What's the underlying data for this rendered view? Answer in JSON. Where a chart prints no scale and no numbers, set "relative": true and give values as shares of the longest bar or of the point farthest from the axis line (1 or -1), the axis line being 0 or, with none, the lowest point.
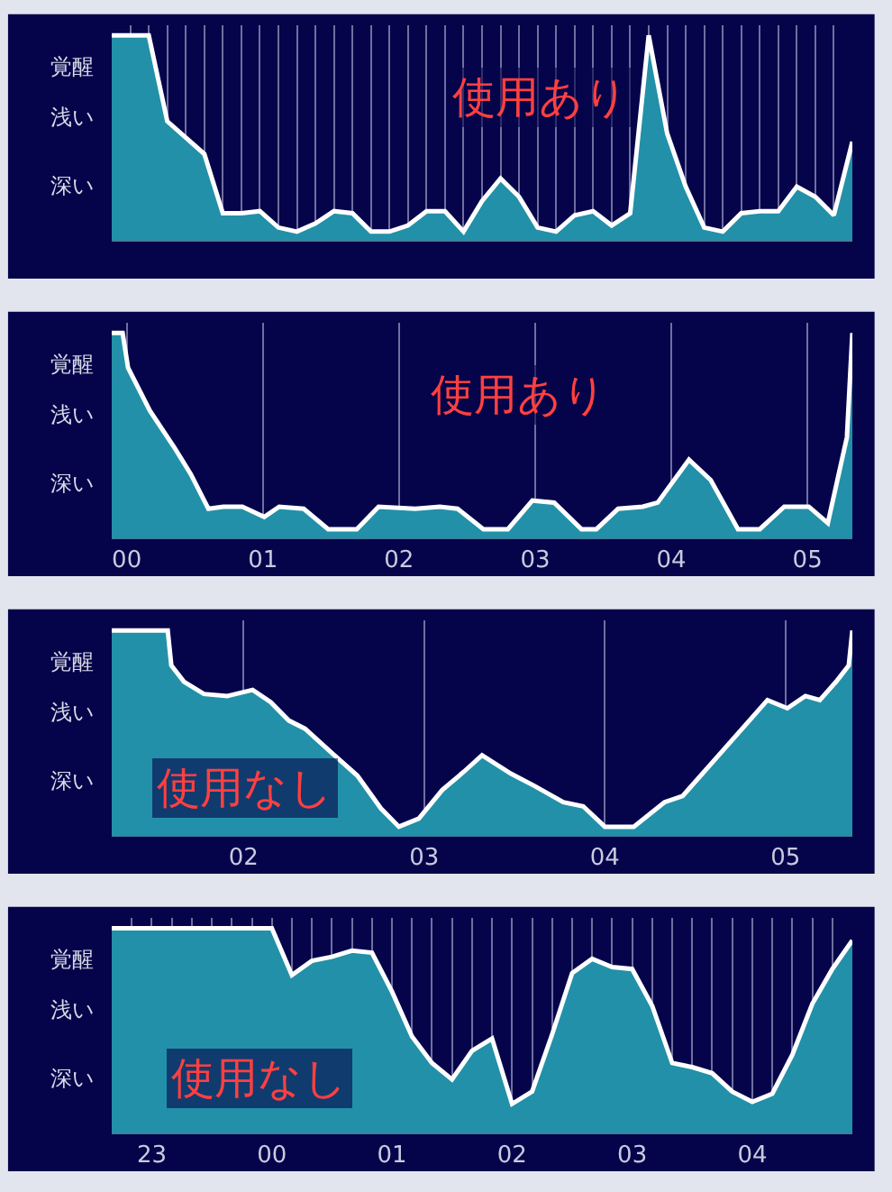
{
  "chart_data": [
    {
      "type": "area",
      "relative": true,
      "annotations": [
        "覚醒",
        "浅い",
        "深い",
        "使用あり"
      ],
      "categories": [
        null,
        null,
        null,
        null,
        null,
        null,
        null,
        null,
        null,
        null,
        null,
        null,
        null,
        null,
        null,
        null,
        null,
        null,
        null,
        null,
        null,
        null,
        null,
        null,
        null,
        null,
        null,
        null,
        null,
        null,
        null,
        null,
        null,
        null,
        null,
        null,
        null,
        null,
        null,
        null,
        null
      ],
      "series": [
        {
          "color": "#2290a8",
          "values": [
            1,
            1,
            1,
            0.58,
            0.5,
            0.42,
            0.13,
            0.13,
            0.14,
            0.06,
            0.04,
            0.08,
            0.14,
            0.13,
            0.04,
            0.04,
            0.07,
            0.14,
            0.14,
            0.04,
            0.19,
            0.3,
            0.21,
            0.06,
            0.04,
            0.12,
            0.14,
            0.07,
            0.13,
            1,
            0.52,
            0.26,
            0.06,
            0.04,
            0.13,
            0.14,
            0.14,
            0.26,
            0.21,
            0.12,
            0.48
          ]
        }
      ],
      "grid": "x",
      "tick_labels": false
    },
    {
      "type": "area",
      "relative": true,
      "annotations": [
        "覚醒",
        "浅い",
        "深い",
        "使用あり"
      ],
      "series": [
        {
          "color": "#2290a8",
          "x": [
            -0.11,
            -0.03,
            0.01,
            0.17,
            0.35,
            0.47,
            0.6,
            0.71,
            0.85,
            1.01,
            1.12,
            1.3,
            1.48,
            1.69,
            1.85,
            2.12,
            2.3,
            2.43,
            2.62,
            2.8,
            2.98,
            3.14,
            3.34,
            3.45,
            3.61,
            3.79,
            3.9,
            4.13,
            4.29,
            4.49,
            4.65,
            4.83,
            5.01,
            5.15,
            5.29,
            5.33
          ],
          "values": [
            1,
            1,
            0.83,
            0.62,
            0.44,
            0.31,
            0.14,
            0.15,
            0.15,
            0.1,
            0.15,
            0.14,
            0.04,
            0.04,
            0.15,
            0.14,
            0.15,
            0.14,
            0.04,
            0.04,
            0.18,
            0.17,
            0.04,
            0.04,
            0.14,
            0.15,
            0.17,
            0.38,
            0.28,
            0.04,
            0.04,
            0.15,
            0.15,
            0.07,
            0.49,
            1
          ]
        }
      ],
      "xlim": [
        -0.11,
        5.33
      ],
      "xticks": [
        {
          "value": 0,
          "label": "00"
        },
        {
          "value": 1,
          "label": "01"
        },
        {
          "value": 2,
          "label": "02"
        },
        {
          "value": 3,
          "label": "03"
        },
        {
          "value": 4,
          "label": "04"
        },
        {
          "value": 5,
          "label": "05"
        }
      ],
      "grid": "x",
      "tick_labels": "x"
    },
    {
      "type": "area",
      "relative": true,
      "annotations": [
        "覚醒",
        "浅い",
        "深い",
        "使用なし"
      ],
      "series": [
        {
          "color": "#2290a8",
          "x": [
            1.27,
            1.58,
            1.6,
            1.67,
            1.78,
            1.91,
            2.05,
            2.15,
            2.25,
            2.34,
            2.49,
            2.63,
            2.76,
            2.86,
            2.97,
            3.1,
            3.22,
            3.32,
            3.48,
            3.61,
            3.77,
            3.88,
            4.0,
            4.16,
            4.33,
            4.43,
            4.63,
            4.8,
            4.9,
            5.01,
            5.11,
            5.19,
            5.28,
            5.35,
            5.37
          ],
          "values": [
            1,
            1,
            0.83,
            0.75,
            0.69,
            0.68,
            0.71,
            0.65,
            0.56,
            0.52,
            0.4,
            0.29,
            0.13,
            0.04,
            0.08,
            0.22,
            0.31,
            0.39,
            0.3,
            0.24,
            0.16,
            0.14,
            0.04,
            0.04,
            0.16,
            0.19,
            0.39,
            0.56,
            0.66,
            0.62,
            0.68,
            0.66,
            0.75,
            0.83,
            1
          ]
        }
      ],
      "xlim": [
        1.27,
        5.37
      ],
      "xticks": [
        {
          "value": 2,
          "label": "02"
        },
        {
          "value": 3,
          "label": "03"
        },
        {
          "value": 4,
          "label": "04"
        },
        {
          "value": 5,
          "label": "05"
        }
      ],
      "grid": "x",
      "tick_labels": "x"
    },
    {
      "type": "area",
      "relative": true,
      "annotations": [
        "覚醒",
        "浅い",
        "深い",
        "使用なし"
      ],
      "categories": [
        null,
        null,
        "23",
        null,
        null,
        null,
        null,
        null,
        "00",
        null,
        null,
        null,
        null,
        null,
        "01",
        null,
        null,
        null,
        null,
        null,
        "02",
        null,
        null,
        null,
        null,
        null,
        "03",
        null,
        null,
        null,
        null,
        null,
        "04",
        null,
        null,
        null,
        null,
        null
      ],
      "series": [
        {
          "color": "#2290a8",
          "values": [
            1,
            1,
            1,
            1,
            1,
            1,
            1,
            1,
            1,
            0.77,
            0.84,
            0.86,
            0.89,
            0.88,
            0.69,
            0.47,
            0.34,
            0.26,
            0.4,
            0.46,
            0.14,
            0.2,
            0.48,
            0.78,
            0.85,
            0.81,
            0.8,
            0.62,
            0.34,
            0.32,
            0.29,
            0.2,
            0.15,
            0.19,
            0.38,
            0.63,
            0.8,
            0.94
          ]
        }
      ],
      "grid": "x",
      "tick_labels": "x"
    }
  ]
}
